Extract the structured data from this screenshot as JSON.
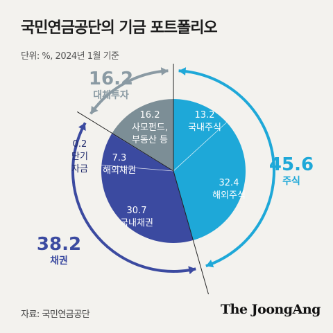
{
  "title": "국민연금공단의 기금 포트폴리오",
  "unit_note": "단위: %, 2024년 1월 기준",
  "source": "자료: 국민연금공단",
  "logo": "The JoongAng",
  "colors": {
    "background": "#f3f2ee",
    "domestic_stocks": "#1ea8d8",
    "foreign_stocks": "#1ea8d8",
    "domestic_bonds": "#3b4aa0",
    "foreign_bonds": "#3b4aa0",
    "short_term": "#3b4aa0",
    "alternative": "#7c8e96",
    "stocks_group": "#1ea8d8",
    "bonds_group": "#3b4aa0",
    "alternative_group": "#8a9aa3"
  },
  "chart_data": {
    "type": "pie",
    "slices": [
      {
        "name": "국내주식",
        "value": 13.2,
        "group": "stocks"
      },
      {
        "name": "해외주식",
        "value": 32.4,
        "group": "stocks"
      },
      {
        "name": "국내채권",
        "value": 30.7,
        "group": "bonds"
      },
      {
        "name": "해외채권",
        "value": 7.3,
        "group": "bonds"
      },
      {
        "name": "단기 자금",
        "value": 0.2,
        "group": "bonds"
      },
      {
        "name": "사모펀드, 부동산 등",
        "value": 16.2,
        "group": "alternative"
      }
    ],
    "groups": [
      {
        "key": "stocks",
        "name": "주식",
        "value": 45.6
      },
      {
        "key": "bonds",
        "name": "채권",
        "value": 38.2
      },
      {
        "key": "alternative",
        "name": "대체투자",
        "value": 16.2
      }
    ]
  }
}
